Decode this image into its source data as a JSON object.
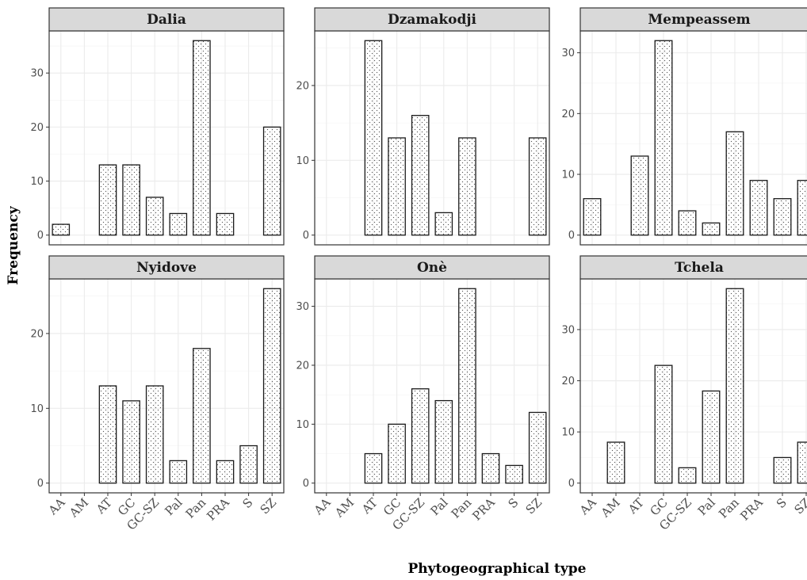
{
  "chart_data": {
    "type": "bar",
    "layout": "facet-grid 2x3",
    "xlabel": "Phytogeographical type",
    "ylabel": "Frequency",
    "categories": [
      "AA",
      "AM",
      "AT",
      "GC",
      "GC-SZ",
      "Pal",
      "Pan",
      "PRA",
      "S",
      "SZ"
    ],
    "grid": true,
    "bar_fill": "stippled dots",
    "colors": {
      "strip_bg": "#d9d9d9",
      "border": "#333333",
      "grid": "#ebebeb",
      "bar_outline": "#1a1a1a"
    },
    "panels": [
      {
        "title": "Dalia",
        "ylim": [
          -1.8,
          37.8
        ],
        "yticks": [
          0,
          10,
          20,
          30
        ],
        "values": [
          2,
          0,
          13,
          13,
          7,
          4,
          36,
          4,
          0,
          20
        ]
      },
      {
        "title": "Dzamakodji",
        "ylim": [
          -1.3,
          27.3
        ],
        "yticks": [
          0,
          10,
          20
        ],
        "values": [
          0,
          0,
          26,
          13,
          16,
          3,
          13,
          0,
          0,
          13
        ]
      },
      {
        "title": "Mempeassem",
        "ylim": [
          -1.6,
          33.6
        ],
        "yticks": [
          0,
          10,
          20,
          30
        ],
        "values": [
          6,
          0,
          13,
          32,
          4,
          2,
          17,
          9,
          6,
          9
        ]
      },
      {
        "title": "Nyidove",
        "ylim": [
          -1.3,
          27.3
        ],
        "yticks": [
          0,
          10,
          20
        ],
        "values": [
          0,
          0,
          13,
          11,
          13,
          3,
          18,
          3,
          5,
          26
        ]
      },
      {
        "title": "Onè",
        "ylim": [
          -1.65,
          34.65
        ],
        "yticks": [
          0,
          10,
          20,
          30
        ],
        "values": [
          0,
          0,
          5,
          10,
          16,
          14,
          33,
          5,
          3,
          12
        ]
      },
      {
        "title": "Tchela",
        "ylim": [
          -1.9,
          39.9
        ],
        "yticks": [
          0,
          10,
          20,
          30
        ],
        "values": [
          0,
          8,
          0,
          23,
          3,
          18,
          38,
          0,
          5,
          8
        ]
      }
    ]
  }
}
